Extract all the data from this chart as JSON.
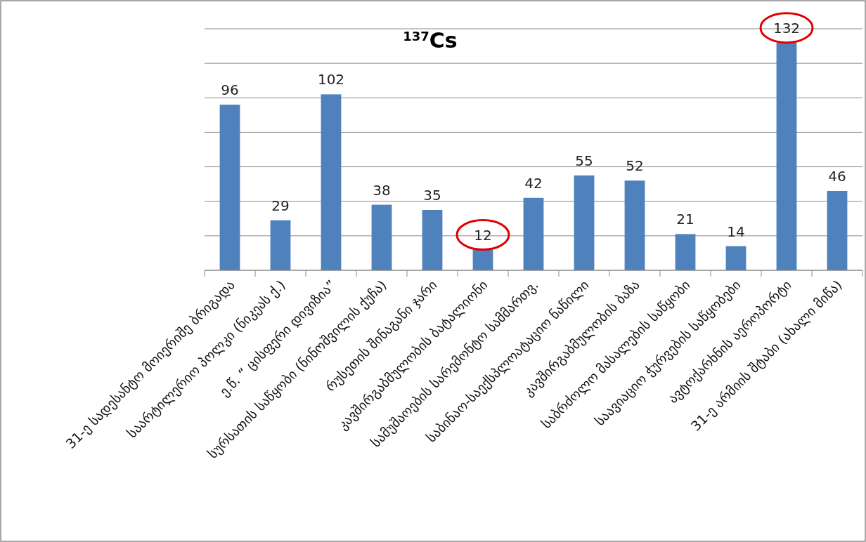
{
  "chart_data": {
    "type": "bar",
    "title": "$^{137}$Cs",
    "categories": [
      "31-ე სადესანტო მოიერიშე ბრიგადა",
      "საარტილერიო პოლკი (ნიკეას ქ.)",
      "ე.წ. “ ცისფერი დივიზია”",
      "სურსათის საწყობი (ნინოშვილის ქუჩა)",
      "რუსეთის შინაგანი ჯარი",
      "კავშირგაბმულობის  ბატალიონი",
      "სამუშაოების სარემონტო სამმართვ.",
      "საბინაო-საექსპლოატაციო ნაწილი",
      "კავშირგაბმულობის ბაზა",
      "საბრძოლო მასალების საწყობი",
      "საავიაციო ჭურვების საწყობები",
      "ავტოქარხნის აეროპორტი",
      "31-ე არმიის შტაბი (ახალი მიწა)"
    ],
    "values": [
      96,
      29,
      102,
      38,
      35,
      12,
      42,
      55,
      52,
      21,
      14,
      132,
      46
    ],
    "color": "#4f81bd",
    "ylim": [
      0,
      140
    ],
    "yticks": [
      {
        "value": 0,
        "label": null
      },
      {
        "value": 20,
        "label": null
      },
      {
        "value": 40,
        "label": null
      },
      {
        "value": 60,
        "label": null
      },
      {
        "value": 80,
        "label": null
      },
      {
        "value": 100,
        "label": null
      },
      {
        "value": 120,
        "label": null
      },
      {
        "value": 140,
        "label": null
      }
    ],
    "grid": true,
    "data_labels": true,
    "tick_labels": "x"
  }
}
